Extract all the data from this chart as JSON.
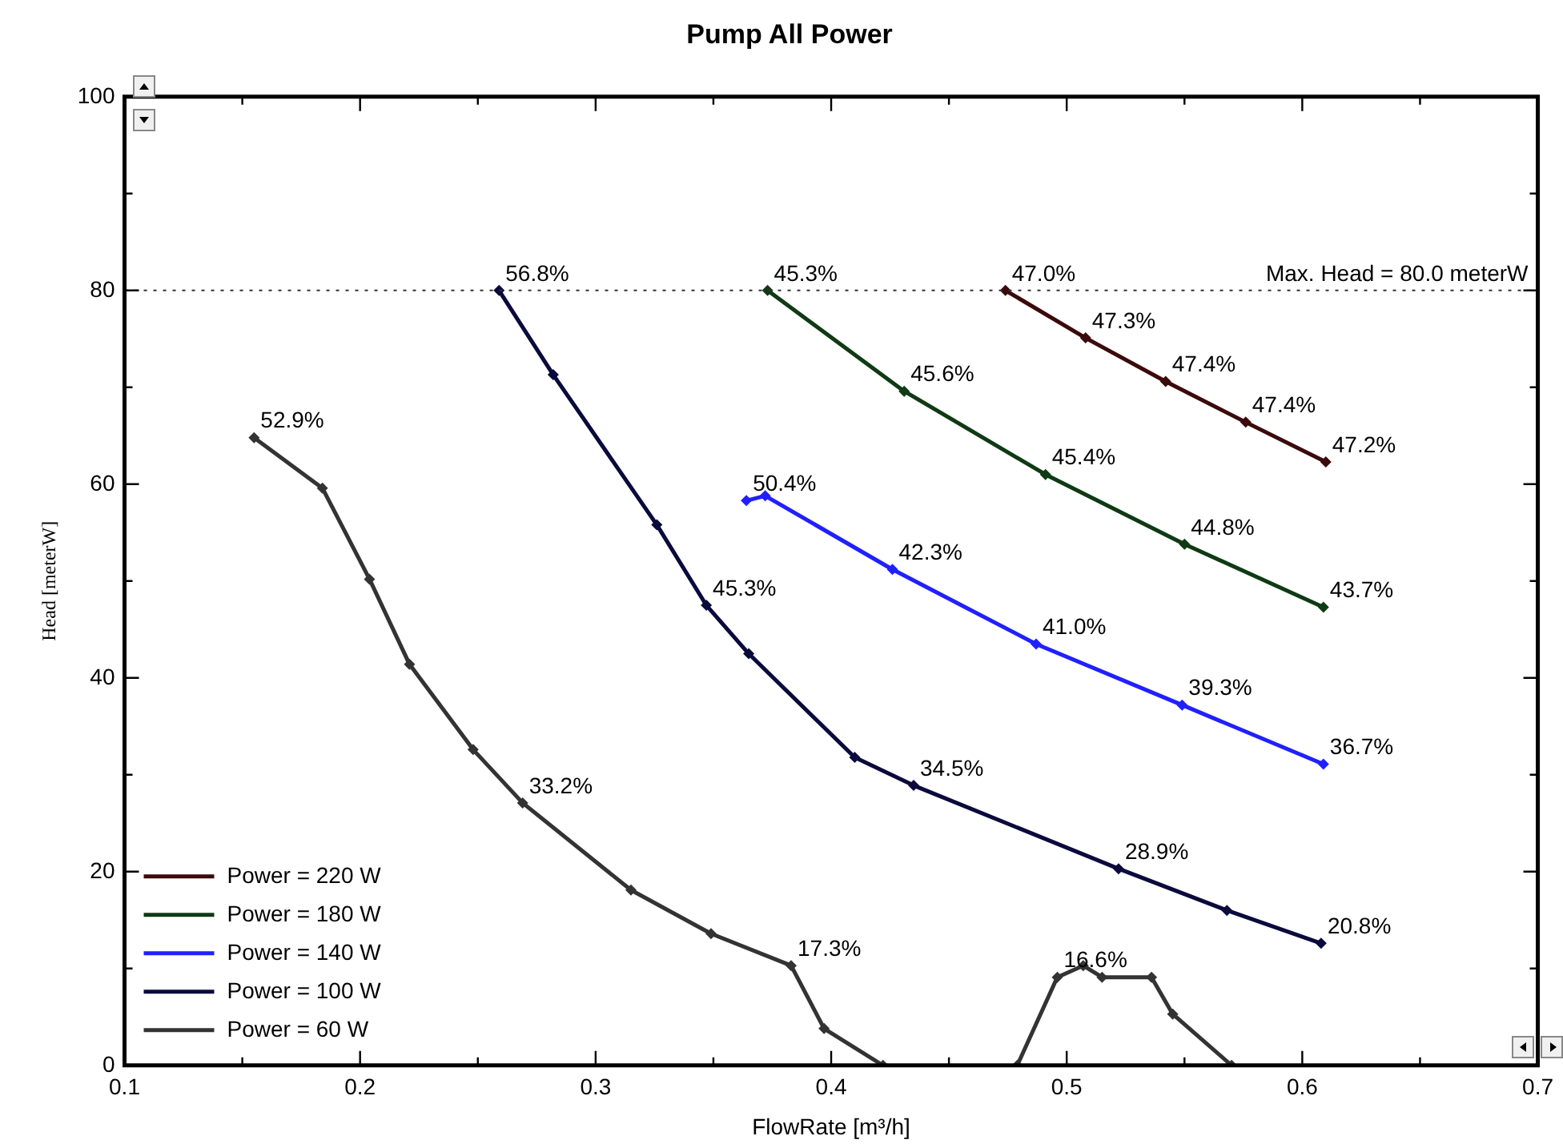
{
  "chart_data": {
    "type": "line",
    "title": "Pump All Power",
    "xlabel": "FlowRate [m³/h]",
    "ylabel": "Head [meterW]",
    "xlim": [
      0.1,
      0.7
    ],
    "ylim": [
      0,
      100
    ],
    "xticks": [
      0.1,
      {
        "value": 0.15,
        "label": null
      },
      0.2,
      {
        "value": 0.25,
        "label": null
      },
      0.3,
      {
        "value": 0.35,
        "label": null
      },
      0.4,
      {
        "value": 0.45,
        "label": null
      },
      0.5,
      {
        "value": 0.55,
        "label": null
      },
      0.6,
      {
        "value": 0.65,
        "label": null
      },
      0.7
    ],
    "yticks": [
      0,
      {
        "value": 10,
        "label": null
      },
      20,
      {
        "value": 30,
        "label": null
      },
      40,
      {
        "value": 50,
        "label": null
      },
      60,
      {
        "value": 70,
        "label": null
      },
      80,
      {
        "value": 90,
        "label": null
      },
      100
    ],
    "grid": false,
    "legend": "bottom left",
    "marker": "diamond",
    "line_style": "solid",
    "ref_lines": [
      {
        "axis": "y",
        "value": 80,
        "label": "Max. Head = 80.0 meterW",
        "line_style": "dotted",
        "color": "#333333"
      }
    ],
    "annotations": [
      {
        "text": "47.0%",
        "x": 0.474,
        "y": 80
      },
      {
        "text": "47.3%",
        "x": 0.508,
        "y": 75.1
      },
      {
        "text": "47.4%",
        "x": 0.542,
        "y": 70.6
      },
      {
        "text": "47.4%",
        "x": 0.576,
        "y": 66.4
      },
      {
        "text": "47.2%",
        "x": 0.61,
        "y": 62.3
      },
      {
        "text": "45.3%",
        "x": 0.373,
        "y": 80
      },
      {
        "text": "45.6%",
        "x": 0.431,
        "y": 69.6
      },
      {
        "text": "45.4%",
        "x": 0.491,
        "y": 61
      },
      {
        "text": "44.8%",
        "x": 0.55,
        "y": 53.8
      },
      {
        "text": "43.7%",
        "x": 0.609,
        "y": 47.3
      },
      {
        "text": "50.4%",
        "x": 0.364,
        "y": 58.3
      },
      {
        "text": "42.3%",
        "x": 0.426,
        "y": 51.2
      },
      {
        "text": "41.0%",
        "x": 0.487,
        "y": 43.5
      },
      {
        "text": "39.3%",
        "x": 0.549,
        "y": 37.2
      },
      {
        "text": "36.7%",
        "x": 0.609,
        "y": 31.1
      },
      {
        "text": "56.8%",
        "x": 0.259,
        "y": 80
      },
      {
        "text": "45.3%",
        "x": 0.347,
        "y": 47.5
      },
      {
        "text": "34.5%",
        "x": 0.435,
        "y": 28.9
      },
      {
        "text": "28.9%",
        "x": 0.522,
        "y": 20.3
      },
      {
        "text": "20.8%",
        "x": 0.608,
        "y": 12.6
      },
      {
        "text": "52.9%",
        "x": 0.155,
        "y": 64.8
      },
      {
        "text": "33.2%",
        "x": 0.269,
        "y": 27.1
      },
      {
        "text": "17.3%",
        "x": 0.383,
        "y": 10.3
      },
      {
        "text": "16.6%",
        "x": 0.496,
        "y": 9.1
      }
    ],
    "series": [
      {
        "name": "Power = 220 W",
        "color": "#3c0a0a",
        "x": [
          0.474,
          0.508,
          0.542,
          0.576,
          0.61
        ],
        "values": [
          80,
          75.1,
          70.6,
          66.4,
          62.3
        ]
      },
      {
        "name": "Power = 180 W",
        "color": "#0f3a14",
        "x": [
          0.373,
          0.431,
          0.491,
          0.55,
          0.609
        ],
        "values": [
          80,
          69.6,
          61,
          53.8,
          47.3
        ]
      },
      {
        "name": "Power = 140 W",
        "color": "#2020ff",
        "x": [
          0.364,
          0.372,
          0.426,
          0.487,
          0.549,
          0.609
        ],
        "values": [
          58.3,
          58.8,
          51.2,
          43.5,
          37.2,
          31.1
        ]
      },
      {
        "name": "Power = 100 W",
        "color": "#0a0a3c",
        "x": [
          0.259,
          0.282,
          0.326,
          0.347,
          0.365,
          0.41,
          0.435,
          0.522,
          0.568,
          0.608
        ],
        "values": [
          80,
          71.3,
          55.8,
          47.5,
          42.5,
          31.8,
          28.9,
          20.3,
          16,
          12.6
        ]
      },
      {
        "name": "Power = 60 W",
        "color": "#333333",
        "x": [
          0.155,
          0.184,
          0.204,
          0.221,
          0.248,
          0.269,
          0.315,
          0.349,
          0.383,
          0.397,
          0.422,
          0.45,
          0.479,
          0.496,
          0.507,
          0.515,
          0.536,
          0.545,
          0.57
        ],
        "values": [
          64.8,
          59.6,
          50.2,
          41.4,
          32.6,
          27.1,
          18.1,
          13.6,
          10.3,
          3.8,
          0,
          null,
          0,
          9.1,
          10.3,
          9.1,
          9.1,
          5.3,
          0
        ]
      }
    ]
  }
}
